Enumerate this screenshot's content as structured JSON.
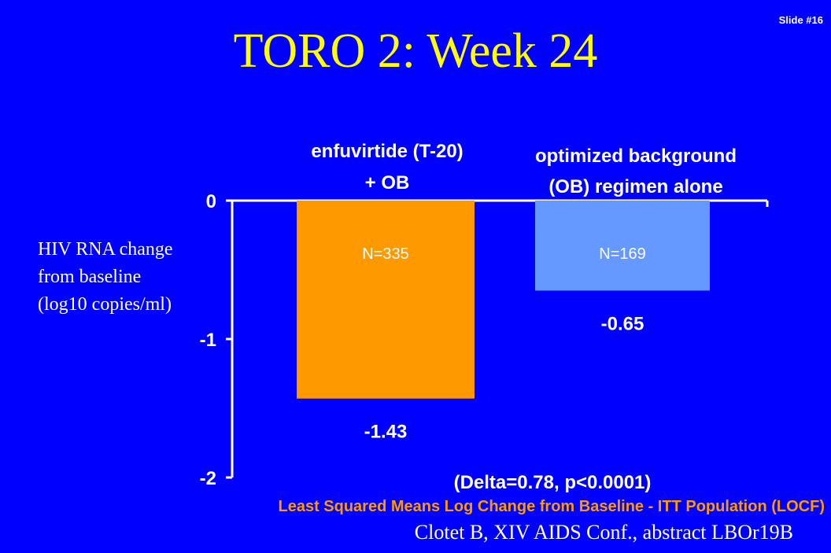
{
  "slide_number": "Slide #16",
  "title": "TORO 2: Week 24",
  "ylabel_lines": [
    "HIV RNA change",
    "from baseline",
    "(log10 copies/ml)"
  ],
  "chart_data": {
    "type": "bar",
    "categories": [
      [
        "enfuvirtide (T-20)",
        "+ OB"
      ],
      [
        "optimized background",
        "(OB) regimen alone"
      ]
    ],
    "values": [
      -1.43,
      -0.65
    ],
    "value_labels": [
      "-1.43",
      "-0.65"
    ],
    "n_labels": [
      "N=335",
      "N=169"
    ],
    "colors": [
      "#FF9900",
      "#6699FF"
    ],
    "ylim": [
      -2,
      0
    ],
    "yticks": [
      0,
      -1,
      -2
    ],
    "ytick_labels": [
      "0",
      "-1",
      "-2"
    ],
    "annotation": "(Delta=0.78,    p<0.0001)",
    "grid": false
  },
  "footer": {
    "method": "Least Squared Means Log Change from Baseline - ITT Population (LOCF)",
    "citation": "Clotet B, XIV AIDS Conf., abstract LBOr19B"
  }
}
